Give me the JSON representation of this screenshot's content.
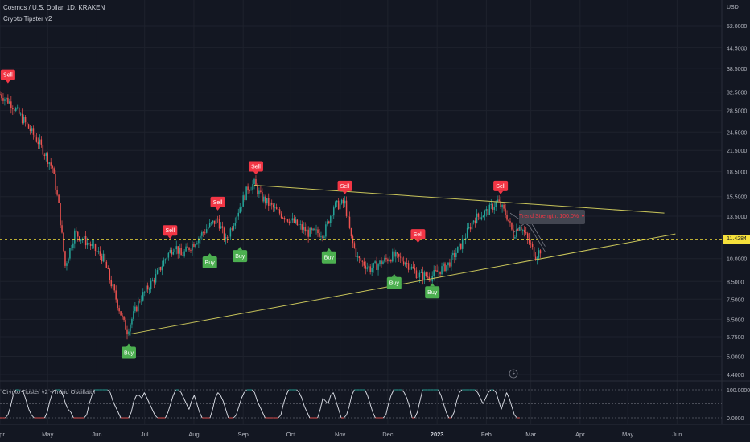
{
  "header": {
    "symbol_line": "Cosmos / U.S. Dollar, 1D, KRAKEN",
    "indicator_name": "Crypto Tipster v2",
    "oscillator_name": "Crypto Tipster v2 - Trend Oscillator",
    "currency": "USD"
  },
  "last_price_label": "11.4284",
  "trend_strength_label": "Trend Strength: 100.0% ▼",
  "colors": {
    "background": "#131722",
    "up": "#26a69a",
    "down": "#ef5350",
    "sell": "#f23645",
    "buy": "#4caf50",
    "trendline": "#c8c45a",
    "last_price": "#f5e03b"
  },
  "chart_data": [
    {
      "type": "candlestick",
      "scale": "log",
      "y_ticks": [
        52.0,
        44.5,
        38.5,
        32.5,
        28.5,
        24.5,
        21.5,
        18.5,
        15.5,
        13.5,
        11.4284,
        10.0,
        8.5,
        7.5,
        6.5,
        5.75,
        5.0,
        4.4
      ],
      "y_tick_labels": [
        "52.0000",
        "44.5000",
        "38.5000",
        "32.5000",
        "28.5000",
        "24.5000",
        "21.5000",
        "18.5000",
        "15.5000",
        "13.5000",
        "",
        "10.0000",
        "8.5000",
        "7.5000",
        "6.5000",
        "5.7500",
        "5.0000",
        "4.4000"
      ],
      "x_labels": [
        "Apr",
        "May",
        "Jun",
        "Jul",
        "Aug",
        "Sep",
        "Oct",
        "Nov",
        "Dec",
        "2023",
        "Feb",
        "Mar",
        "Apr",
        "May",
        "Jun"
      ],
      "price_path": [
        [
          "2022-04-01",
          32.0
        ],
        [
          "2022-04-08",
          30.0
        ],
        [
          "2022-04-16",
          26.5
        ],
        [
          "2022-04-26",
          22.5
        ],
        [
          "2022-05-04",
          19.0
        ],
        [
          "2022-05-08",
          14.5
        ],
        [
          "2022-05-12",
          9.5
        ],
        [
          "2022-05-18",
          12.0
        ],
        [
          "2022-05-28",
          11.0
        ],
        [
          "2022-06-05",
          10.0
        ],
        [
          "2022-06-12",
          7.8
        ],
        [
          "2022-06-18",
          6.3
        ],
        [
          "2022-06-20",
          6.0
        ],
        [
          "2022-06-28",
          7.5
        ],
        [
          "2022-07-08",
          8.8
        ],
        [
          "2022-07-15",
          10.2
        ],
        [
          "2022-07-20",
          11.0
        ],
        [
          "2022-07-24",
          10.2
        ],
        [
          "2022-08-01",
          11.2
        ],
        [
          "2022-08-10",
          12.5
        ],
        [
          "2022-08-16",
          13.2
        ],
        [
          "2022-08-21",
          11.3
        ],
        [
          "2022-08-26",
          13.0
        ],
        [
          "2022-09-04",
          16.5
        ],
        [
          "2022-09-08",
          17.0
        ],
        [
          "2022-09-12",
          15.5
        ],
        [
          "2022-09-22",
          14.0
        ],
        [
          "2022-10-02",
          13.0
        ],
        [
          "2022-10-12",
          12.0
        ],
        [
          "2022-10-22",
          12.0
        ],
        [
          "2022-10-28",
          14.5
        ],
        [
          "2022-11-04",
          14.8
        ],
        [
          "2022-11-08",
          11.5
        ],
        [
          "2022-11-12",
          10.0
        ],
        [
          "2022-11-20",
          9.3
        ],
        [
          "2022-11-28",
          9.8
        ],
        [
          "2022-12-04",
          10.2
        ],
        [
          "2022-12-12",
          9.8
        ],
        [
          "2022-12-20",
          8.9
        ],
        [
          "2022-12-28",
          8.8
        ],
        [
          "2023-01-08",
          9.6
        ],
        [
          "2023-01-16",
          11.0
        ],
        [
          "2023-01-24",
          13.2
        ],
        [
          "2023-02-02",
          14.0
        ],
        [
          "2023-02-08",
          15.0
        ],
        [
          "2023-02-14",
          13.5
        ],
        [
          "2023-02-18",
          11.8
        ],
        [
          "2023-02-22",
          12.8
        ],
        [
          "2023-03-04",
          10.2
        ],
        [
          "2023-03-08",
          10.8
        ]
      ],
      "signals": [
        {
          "label": "Sell",
          "type": "sell",
          "date": "2022-04-06",
          "price": 32.5
        },
        {
          "label": "Buy",
          "type": "buy",
          "date": "2022-06-21",
          "price": 5.8
        },
        {
          "label": "Sell",
          "type": "sell",
          "date": "2022-07-17",
          "price": 10.8
        },
        {
          "label": "Buy",
          "type": "buy",
          "date": "2022-08-11",
          "price": 11.0
        },
        {
          "label": "Sell",
          "type": "sell",
          "date": "2022-08-16",
          "price": 13.2
        },
        {
          "label": "Buy",
          "type": "buy",
          "date": "2022-08-30",
          "price": 11.5
        },
        {
          "label": "Sell",
          "type": "sell",
          "date": "2022-09-09",
          "price": 17.0
        },
        {
          "label": "Buy",
          "type": "buy",
          "date": "2022-10-25",
          "price": 11.4
        },
        {
          "label": "Sell",
          "type": "sell",
          "date": "2022-11-04",
          "price": 14.8
        },
        {
          "label": "Buy",
          "type": "buy",
          "date": "2022-12-05",
          "price": 9.5
        },
        {
          "label": "Sell",
          "type": "sell",
          "date": "2022-12-20",
          "price": 10.5
        },
        {
          "label": "Buy",
          "type": "buy",
          "date": "2022-12-29",
          "price": 8.9
        },
        {
          "label": "Sell",
          "type": "sell",
          "date": "2023-02-10",
          "price": 14.8
        }
      ],
      "trendlines": [
        {
          "from": [
            "2022-09-08",
            16.8
          ],
          "to": [
            "2023-05-24",
            13.8
          ]
        },
        {
          "from": [
            "2022-06-21",
            5.85
          ],
          "to": [
            "2023-05-31",
            11.9
          ]
        }
      ],
      "last_price": 11.4284
    },
    {
      "type": "line",
      "name": "Crypto Tipster v2 - Trend Oscillator",
      "y_ticks": [
        100,
        0
      ],
      "y_tick_labels": [
        "100.0000",
        "0.0000"
      ],
      "ylim": [
        0,
        100
      ],
      "values": [
        0,
        0,
        0,
        10,
        40,
        80,
        100,
        100,
        95,
        90,
        60,
        30,
        10,
        0,
        0,
        0,
        0,
        0,
        20,
        60,
        90,
        100,
        100,
        100,
        80,
        50,
        30,
        20,
        0,
        0,
        0,
        0,
        0,
        10,
        50,
        80,
        100,
        100,
        100,
        100,
        100,
        100,
        90,
        60,
        40,
        20,
        0,
        0,
        0,
        0,
        20,
        60,
        80,
        80,
        70,
        90,
        70,
        50,
        30,
        10,
        0,
        0,
        0,
        0,
        20,
        50,
        80,
        100,
        100,
        90,
        70,
        50,
        30,
        60,
        80,
        50,
        20,
        0,
        0,
        0,
        0,
        30,
        70,
        90,
        80,
        60,
        30,
        0,
        0,
        0,
        10,
        40,
        70,
        90,
        100,
        100,
        100,
        90,
        60,
        40,
        20,
        0,
        0,
        0,
        0,
        0,
        0,
        10,
        50,
        80,
        100,
        100,
        100,
        100,
        90,
        70,
        40,
        20,
        0,
        0,
        0,
        0,
        30,
        70,
        60,
        50,
        80,
        90,
        60,
        30,
        0,
        0,
        10,
        40,
        80,
        100,
        100,
        100,
        100,
        100,
        80,
        50,
        20,
        0,
        0,
        0,
        0,
        10,
        50,
        80,
        100,
        100,
        100,
        100,
        90,
        70,
        40,
        0,
        0,
        20,
        60,
        100,
        100,
        100,
        100,
        100,
        100,
        100,
        80,
        50,
        20,
        0,
        0,
        20,
        60,
        90,
        100,
        100,
        100,
        100,
        100,
        100,
        90,
        70,
        50,
        70,
        90,
        100,
        100,
        90,
        60,
        30,
        60,
        90,
        70,
        40,
        10,
        0,
        0
      ]
    }
  ]
}
